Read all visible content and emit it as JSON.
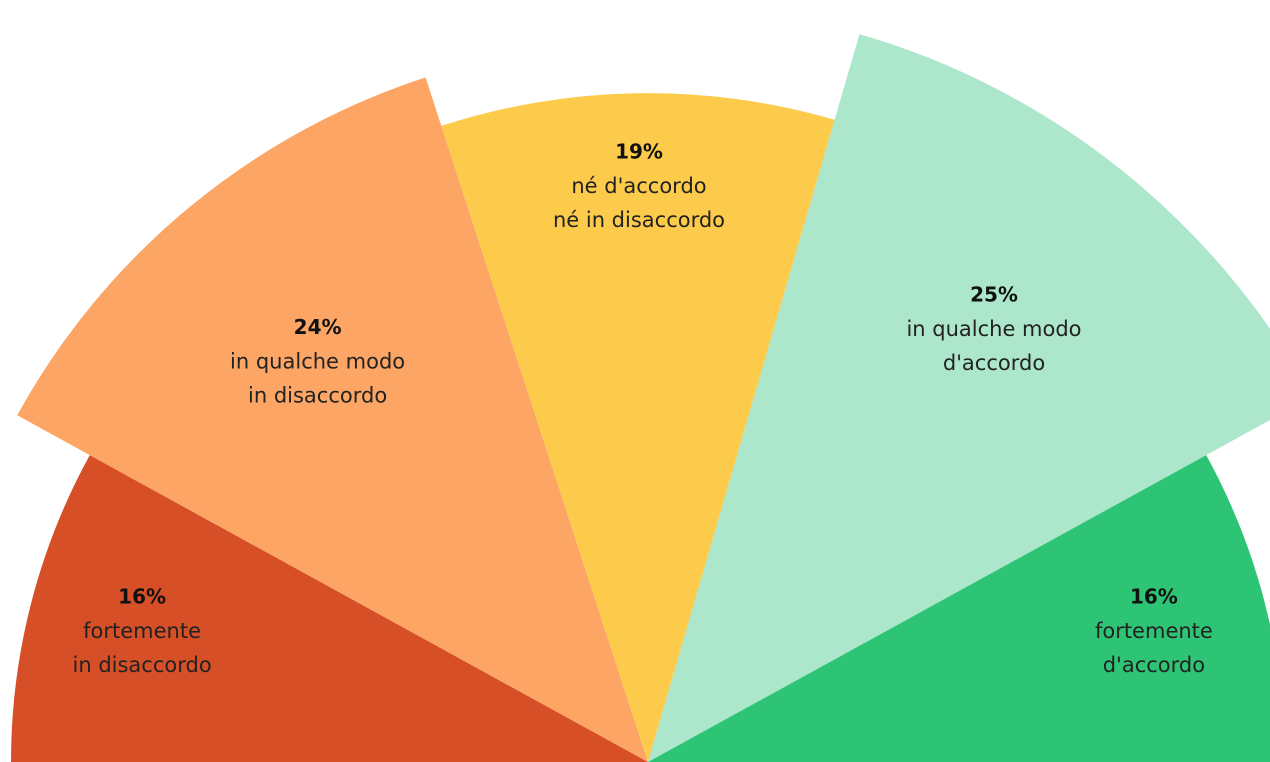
{
  "chart_data": {
    "type": "pie",
    "variant": "semicircle-exploded",
    "title": "",
    "slices": [
      {
        "value": 16,
        "percent_label": "16%",
        "label_lines": [
          "fortemente",
          "in disaccordo"
        ],
        "color": "#D64F26"
      },
      {
        "value": 24,
        "percent_label": "24%",
        "label_lines": [
          "in qualche modo",
          "in disaccordo"
        ],
        "color": "#FCA564"
      },
      {
        "value": 19,
        "percent_label": "19%",
        "label_lines": [
          "né d'accordo",
          "né in disaccordo"
        ],
        "color": "#FDCB4B"
      },
      {
        "value": 25,
        "percent_label": "25%",
        "label_lines": [
          "in qualche modo",
          "d'accordo"
        ],
        "color": "#ACE6CB"
      },
      {
        "value": 16,
        "percent_label": "16%",
        "label_lines": [
          "fortemente",
          "d'accordo"
        ],
        "color": "#2EC475"
      }
    ]
  }
}
